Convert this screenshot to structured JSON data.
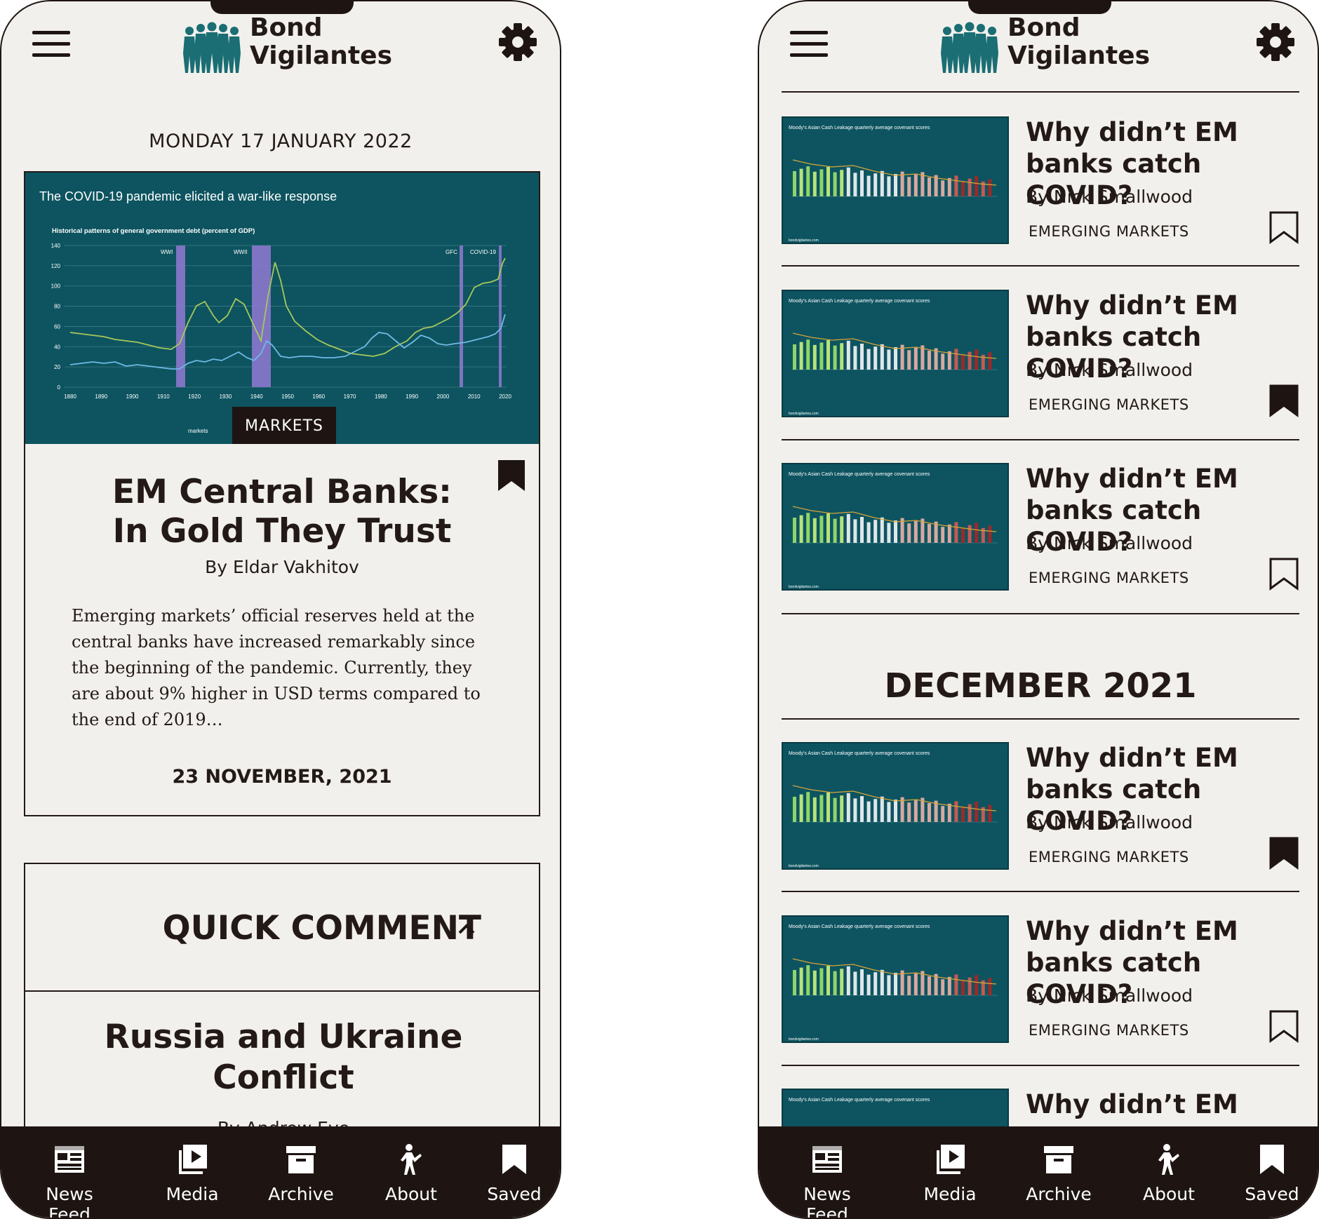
{
  "app": {
    "logo_line1": "Bond",
    "logo_line2": "Vigilantes"
  },
  "tabs": [
    {
      "label": "News Feed",
      "icon": "news-feed-icon"
    },
    {
      "label": "Media",
      "icon": "media-icon"
    },
    {
      "label": "Archive",
      "icon": "archive-icon"
    },
    {
      "label": "About",
      "icon": "about-icon"
    },
    {
      "label": "Saved",
      "icon": "saved-icon"
    }
  ],
  "left": {
    "date": "MONDAY 17 JANUARY 2022",
    "featured": {
      "category": "MARKETS",
      "title_line1": "EM Central Banks:",
      "title_line2": "In Gold They Trust",
      "author": "By Eldar Vakhitov",
      "excerpt": "Emerging markets’ official reserves held at the central banks have increased remarkably since the beginning of the pandemic. Currently, they are about 9% higher in USD terms compared to the end of 2019…",
      "published": "23 NOVEMBER, 2021",
      "saved": true,
      "image": {
        "headline": "The COVID-19 pandemic elicited a war-like response",
        "chart_title": "Historical patterns of general government debt (percent of GDP)",
        "y_ticks": [
          "140",
          "120",
          "100",
          "80",
          "60",
          "40",
          "20",
          "0"
        ],
        "x_ticks": [
          "1880",
          "1890",
          "1900",
          "1910",
          "1920",
          "1930",
          "1940",
          "1950",
          "1960",
          "1970",
          "1980",
          "1990",
          "2000",
          "2010",
          "2020"
        ],
        "event_labels": [
          "WWI",
          "WWII",
          "GFC",
          "COVID-19"
        ],
        "legend_fragment": "markets"
      }
    },
    "quick_comment": {
      "heading": "QUICK COMMENT",
      "article_title_line1": "Russia and Ukraine",
      "article_title_line2": "Conflict",
      "article_author": "By Andrew Eve"
    }
  },
  "right": {
    "thumb_caption": "Moody's Asian Cash Leakage quarterly average covenant scores",
    "thumb_footer": "bondvigilantes.com",
    "articles_top": [
      {
        "title_line1": "Why didn’t EM",
        "title_line2": "banks catch COVID?",
        "author": "By Nick Smallwood",
        "tag": "EMERGING MARKETS",
        "saved": false
      },
      {
        "title_line1": "Why didn’t EM",
        "title_line2": "banks catch COVID?",
        "author": "By Nick Smallwood",
        "tag": "EMERGING MARKETS",
        "saved": true
      },
      {
        "title_line1": "Why didn’t EM",
        "title_line2": "banks catch COVID?",
        "author": "By Nick Smallwood",
        "tag": "EMERGING MARKETS",
        "saved": false
      }
    ],
    "section_heading": "DECEMBER 2021",
    "articles_bottom": [
      {
        "title_line1": "Why didn’t EM",
        "title_line2": "banks catch COVID?",
        "author": "By Nick Smallwood",
        "tag": "EMERGING MARKETS",
        "saved": true
      },
      {
        "title_line1": "Why didn’t EM",
        "title_line2": "banks catch COVID?",
        "author": "By Nick Smallwood",
        "tag": "EMERGING MARKETS",
        "saved": false
      },
      {
        "title_line1": "Why didn’t EM",
        "title_line2": "",
        "author": "",
        "tag": "",
        "saved": false
      }
    ]
  },
  "colors": {
    "background": "#f2f0ec",
    "ink": "#231a17",
    "tabbar": "#1e1512",
    "chart_teal": "#0d5460",
    "logo_teal": "#1a6e74"
  }
}
